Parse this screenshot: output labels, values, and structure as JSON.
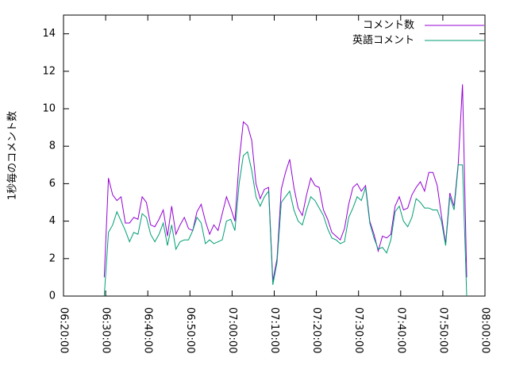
{
  "chart_data": {
    "type": "line",
    "ylabel": "1秒毎のコメント数",
    "xlim": [
      "06:20:00",
      "08:00:00"
    ],
    "xticks": [
      "06:20:00",
      "06:30:00",
      "06:40:00",
      "06:50:00",
      "07:00:00",
      "07:10:00",
      "07:20:00",
      "07:30:00",
      "07:40:00",
      "07:50:00",
      "08:00:00"
    ],
    "ylim": [
      0,
      15
    ],
    "yticks": [
      0,
      2,
      4,
      6,
      8,
      10,
      12,
      14
    ],
    "grid": false,
    "legend": "top-right",
    "x": [
      "06:29:40",
      "06:30:40",
      "06:31:40",
      "06:32:40",
      "06:33:40",
      "06:34:40",
      "06:35:40",
      "06:36:40",
      "06:37:40",
      "06:38:40",
      "06:39:40",
      "06:40:40",
      "06:41:40",
      "06:42:40",
      "06:43:40",
      "06:44:40",
      "06:45:40",
      "06:46:40",
      "06:47:40",
      "06:48:40",
      "06:49:40",
      "06:50:40",
      "06:51:40",
      "06:52:40",
      "06:53:40",
      "06:54:40",
      "06:55:40",
      "06:56:40",
      "06:57:40",
      "06:58:40",
      "06:59:40",
      "07:00:40",
      "07:01:40",
      "07:02:40",
      "07:03:40",
      "07:04:40",
      "07:05:40",
      "07:06:40",
      "07:07:40",
      "07:08:40",
      "07:09:40",
      "07:10:40",
      "07:11:40",
      "07:12:40",
      "07:13:40",
      "07:14:40",
      "07:15:40",
      "07:16:40",
      "07:17:40",
      "07:18:40",
      "07:19:40",
      "07:20:40",
      "07:21:40",
      "07:22:40",
      "07:23:40",
      "07:24:40",
      "07:25:40",
      "07:26:40",
      "07:27:40",
      "07:28:40",
      "07:29:40",
      "07:30:40",
      "07:31:40",
      "07:32:40",
      "07:33:40",
      "07:34:40",
      "07:35:40",
      "07:36:40",
      "07:37:40",
      "07:38:40",
      "07:39:40",
      "07:40:40",
      "07:41:40",
      "07:42:40",
      "07:43:40",
      "07:44:40",
      "07:45:40",
      "07:46:40",
      "07:47:40",
      "07:48:40",
      "07:49:40",
      "07:50:40",
      "07:51:40",
      "07:52:40",
      "07:53:40",
      "07:54:40",
      "07:55:40"
    ],
    "series": [
      {
        "name": "コメント数",
        "color": "#9400d3",
        "values": [
          1.0,
          6.3,
          5.4,
          5.1,
          5.3,
          3.9,
          3.9,
          4.2,
          4.1,
          5.3,
          5.0,
          3.8,
          3.7,
          4.1,
          4.6,
          3.2,
          4.8,
          3.3,
          3.8,
          4.2,
          3.6,
          3.5,
          4.5,
          4.9,
          4.0,
          3.3,
          3.8,
          3.5,
          4.4,
          5.3,
          4.7,
          4.0,
          7.2,
          9.3,
          9.1,
          8.3,
          6.0,
          5.2,
          5.7,
          5.8,
          0.8,
          2.0,
          5.7,
          6.6,
          7.3,
          5.8,
          4.7,
          4.3,
          5.4,
          6.3,
          5.9,
          5.8,
          4.6,
          4.1,
          3.4,
          3.2,
          3.0,
          3.6,
          4.9,
          5.8,
          6.0,
          5.6,
          5.9,
          4.0,
          3.3,
          2.4,
          3.2,
          3.1,
          3.3,
          4.8,
          5.3,
          4.6,
          4.7,
          5.4,
          5.8,
          6.1,
          5.6,
          6.6,
          6.6,
          5.9,
          4.3,
          2.8,
          5.5,
          4.8,
          7.1,
          11.3,
          1.0
        ]
      },
      {
        "name": "英語コメント",
        "color": "#009e73",
        "values": [
          0.0,
          3.4,
          3.8,
          4.5,
          4.0,
          3.5,
          2.9,
          3.4,
          3.3,
          4.4,
          4.2,
          3.3,
          2.9,
          3.3,
          3.9,
          2.7,
          3.8,
          2.5,
          2.9,
          3.0,
          3.0,
          3.5,
          4.2,
          3.9,
          2.8,
          3.0,
          2.8,
          2.9,
          3.0,
          4.0,
          4.1,
          3.5,
          6.0,
          7.5,
          7.7,
          6.7,
          5.3,
          4.8,
          5.3,
          5.6,
          0.6,
          1.8,
          5.0,
          5.3,
          5.6,
          4.6,
          4.0,
          3.8,
          4.6,
          5.3,
          5.1,
          4.7,
          4.3,
          3.6,
          3.1,
          3.0,
          2.8,
          2.9,
          4.2,
          4.7,
          5.3,
          5.1,
          5.8,
          3.9,
          3.1,
          2.5,
          2.6,
          2.3,
          3.0,
          4.5,
          4.8,
          4.0,
          3.7,
          4.2,
          5.2,
          5.0,
          4.7,
          4.7,
          4.6,
          4.6,
          4.0,
          2.7,
          5.3,
          4.6,
          7.0,
          7.0,
          0.0
        ]
      }
    ]
  }
}
